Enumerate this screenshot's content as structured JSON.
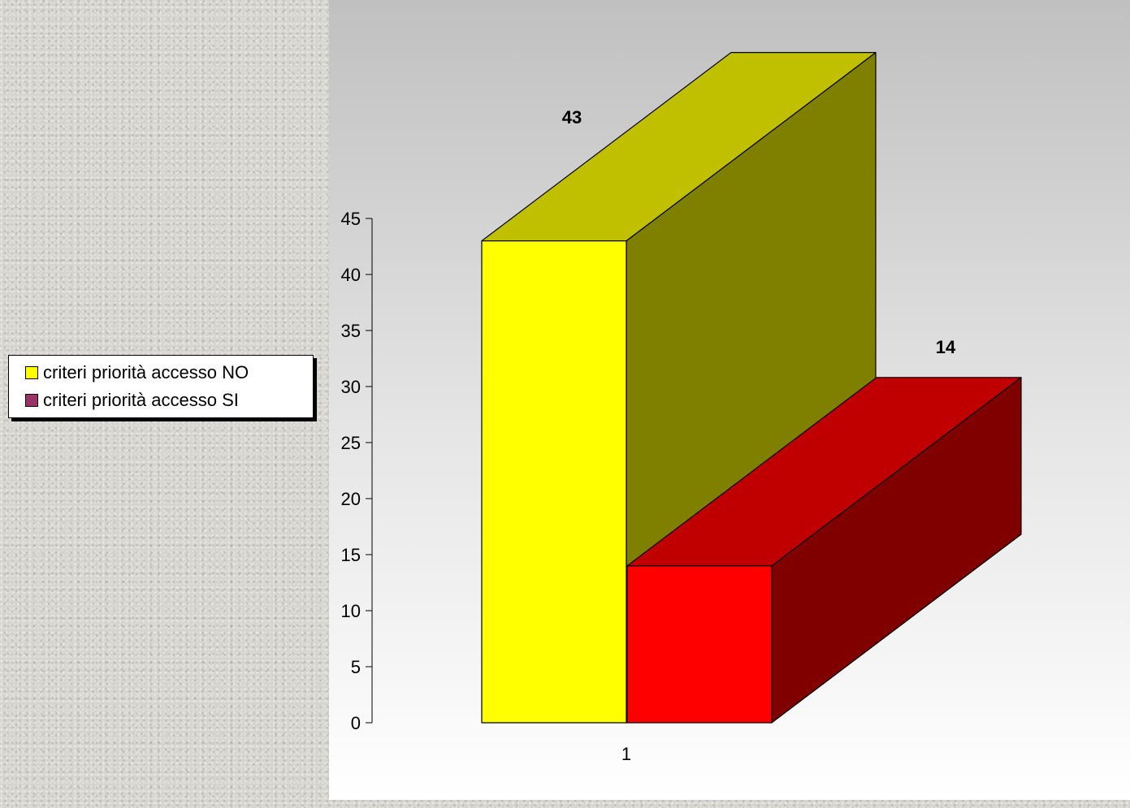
{
  "chart_data": {
    "type": "bar",
    "style": "3d-column",
    "categories": [
      "1"
    ],
    "series": [
      {
        "name": "criteri priorità accesso NO",
        "values": [
          43
        ],
        "front_color": "#ffff00",
        "top_color": "#c0c000",
        "side_color": "#808000",
        "legend_color": "#ffff00"
      },
      {
        "name": "criteri priorità accesso SI",
        "values": [
          14
        ],
        "front_color": "#ff0000",
        "top_color": "#c00000",
        "side_color": "#800000",
        "legend_color": "#993366"
      }
    ],
    "data_labels": [
      "43",
      "14"
    ],
    "ylim": [
      0,
      45
    ],
    "yticks": [
      0,
      5,
      10,
      15,
      20,
      25,
      30,
      35,
      40,
      45
    ],
    "legend_position": "left",
    "grid": false
  }
}
